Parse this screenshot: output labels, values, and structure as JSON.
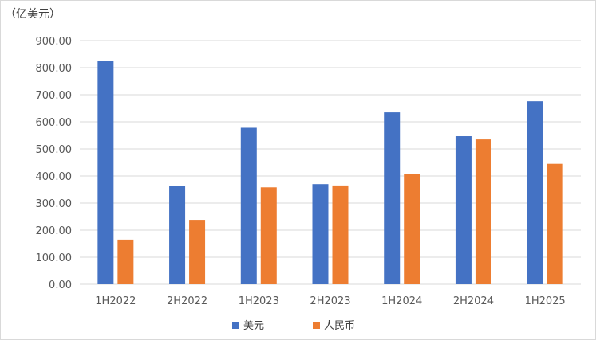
{
  "chart_data": {
    "type": "bar",
    "unit_label": "（亿美元）",
    "categories": [
      "1H2022",
      "2H2022",
      "1H2023",
      "2H2023",
      "1H2024",
      "2H2024",
      "1H2025"
    ],
    "series": [
      {
        "name": "美元",
        "color": "#4472c4",
        "values": [
          825,
          362,
          578,
          370,
          635,
          547,
          676
        ]
      },
      {
        "name": "人民币",
        "color": "#ed7d31",
        "values": [
          165,
          238,
          358,
          365,
          408,
          535,
          445
        ]
      }
    ],
    "ylim": [
      0,
      900
    ],
    "yticks": [
      "0.00",
      "100.00",
      "200.00",
      "300.00",
      "400.00",
      "500.00",
      "600.00",
      "700.00",
      "800.00",
      "900.00"
    ],
    "grid": true,
    "legend_position": "bottom"
  }
}
